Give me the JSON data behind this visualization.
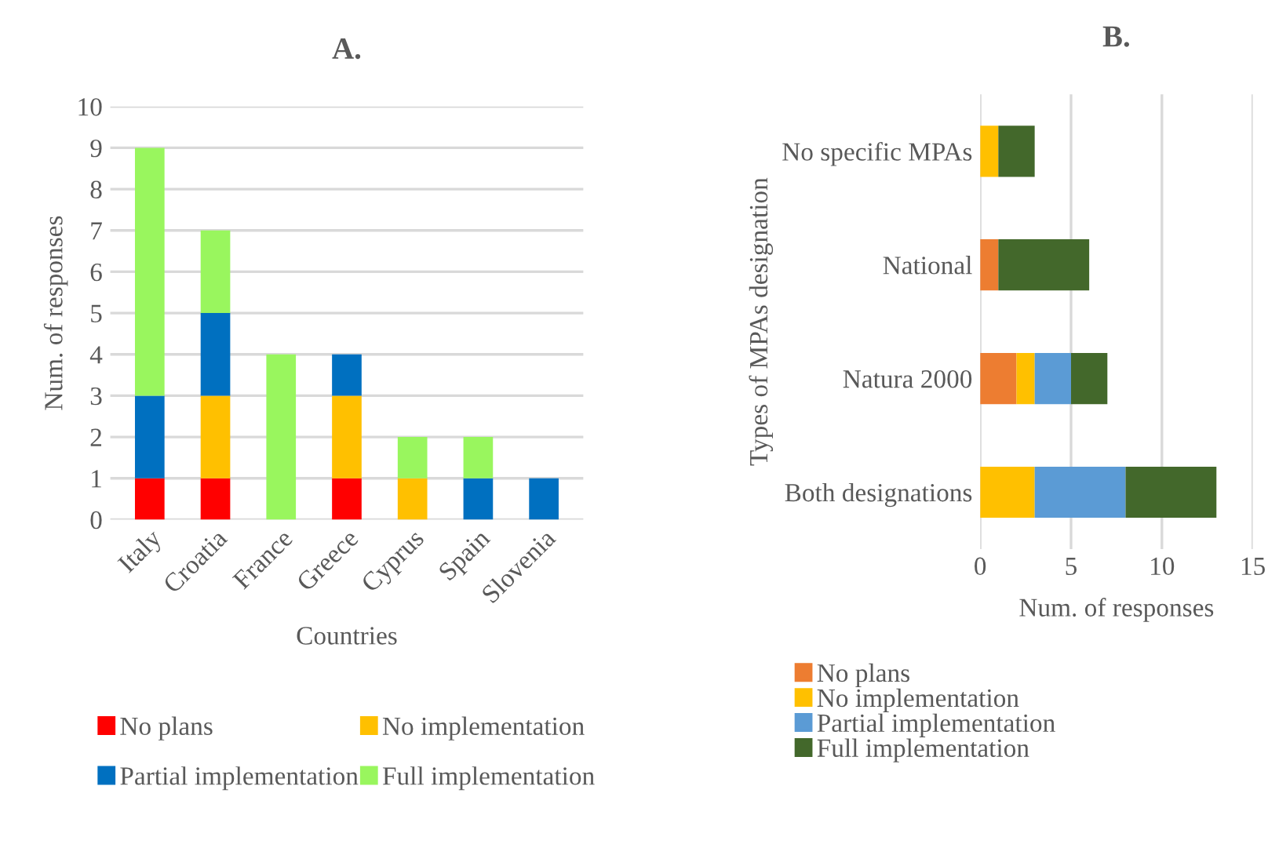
{
  "chart_data": [
    {
      "type": "bar",
      "title": "A.",
      "xlabel": "Countries",
      "ylabel": "Num. of responses",
      "stacked": true,
      "categories": [
        "Italy",
        "Croatia",
        "France",
        "Greece",
        "Cyprus",
        "Spain",
        "Slovenia"
      ],
      "series": [
        {
          "name": "No plans",
          "color": "#ff0000",
          "values": [
            1,
            1,
            0,
            1,
            0,
            0,
            0
          ]
        },
        {
          "name": "No implementation",
          "color": "#ffc000",
          "values": [
            0,
            2,
            0,
            2,
            1,
            0,
            0
          ]
        },
        {
          "name": "Partial implementation",
          "color": "#0070c0",
          "values": [
            2,
            2,
            0,
            1,
            0,
            1,
            1
          ]
        },
        {
          "name": "Full implementation",
          "color": "#99f65e",
          "values": [
            6,
            2,
            4,
            0,
            1,
            1,
            0
          ]
        }
      ],
      "ylim": [
        0,
        10
      ],
      "yticks": [
        0,
        1,
        2,
        3,
        4,
        5,
        6,
        7,
        8,
        9,
        10
      ],
      "grid": "y",
      "legend": "bottom"
    },
    {
      "type": "bar",
      "title": "B.",
      "xlabel": "Num. of responses",
      "ylabel": "Types of MPAs designation",
      "stacked": true,
      "orientation": "horizontal",
      "categories": [
        "No specific MPAs",
        "National",
        "Natura 2000",
        "Both designations"
      ],
      "series": [
        {
          "name": "No plans",
          "color": "#ed7d31",
          "values": [
            0,
            1,
            2,
            0
          ]
        },
        {
          "name": "No implementation",
          "color": "#ffc000",
          "values": [
            1,
            0,
            1,
            3
          ]
        },
        {
          "name": "Partial implementation",
          "color": "#5b9bd5",
          "values": [
            0,
            0,
            2,
            5
          ]
        },
        {
          "name": "Full implementation",
          "color": "#43682b",
          "values": [
            2,
            5,
            2,
            5
          ]
        }
      ],
      "xlim": [
        0,
        15
      ],
      "xticks": [
        0,
        5,
        10,
        15
      ],
      "grid": "x",
      "legend": "bottom"
    }
  ]
}
